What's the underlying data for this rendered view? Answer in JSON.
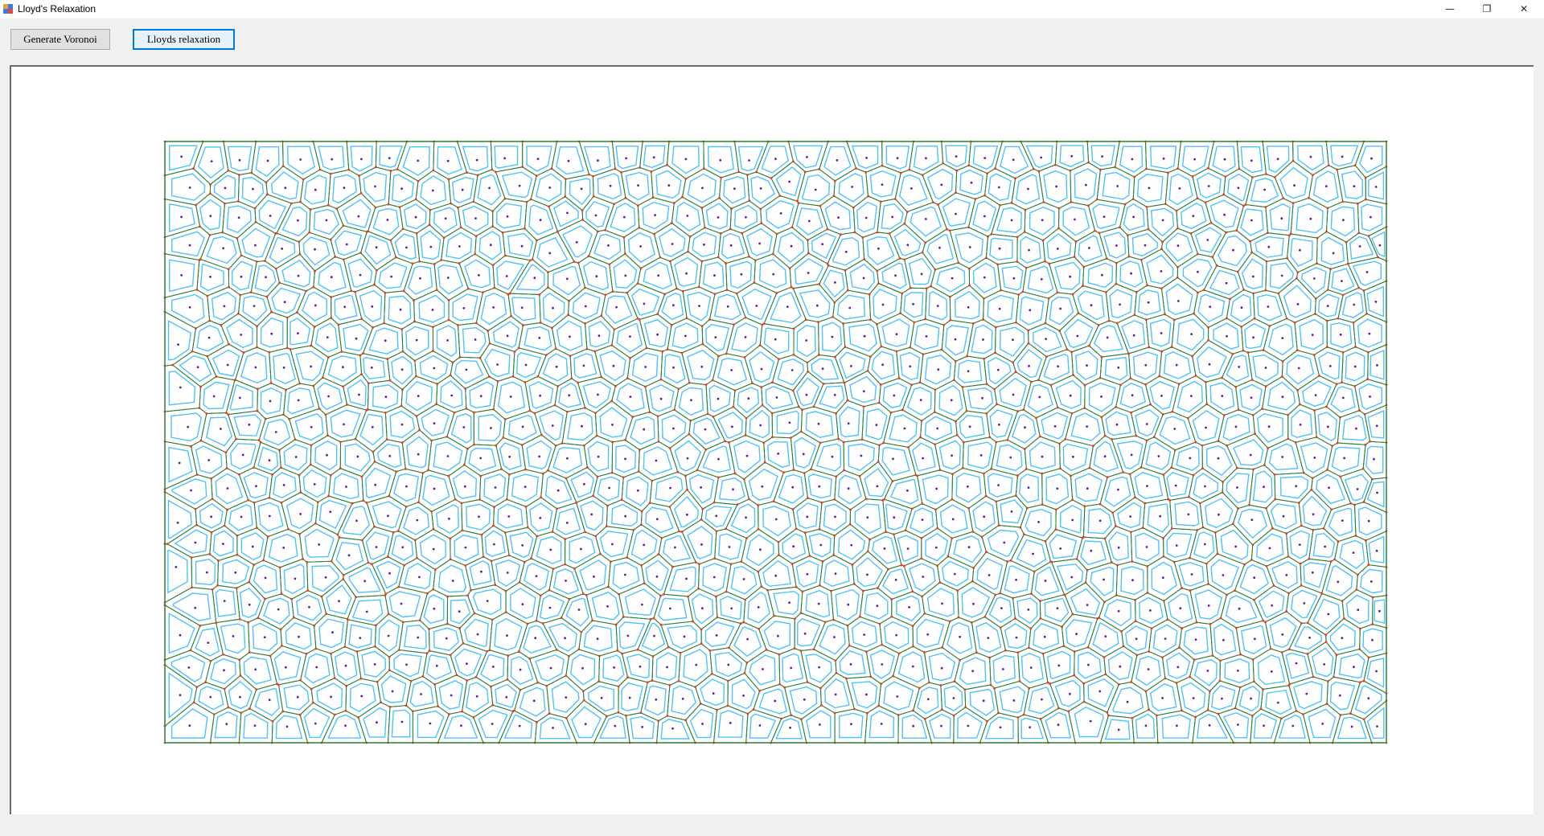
{
  "window": {
    "title": "Lloyd's Relaxation",
    "controls": {
      "minimize": "—",
      "restore": "❐",
      "close": "✕"
    }
  },
  "toolbar": {
    "generate_label": "Generate Voronoi",
    "lloyd_label": "Lloyds relaxation"
  },
  "diagram": {
    "type": "voronoi",
    "cell_outline_color": "#2e7d32",
    "relaxed_cell_color": "#4fc3f7",
    "vertex_color": "#e53935",
    "site_color": "#6a1b9a",
    "frame_color": "#2e7d32"
  }
}
